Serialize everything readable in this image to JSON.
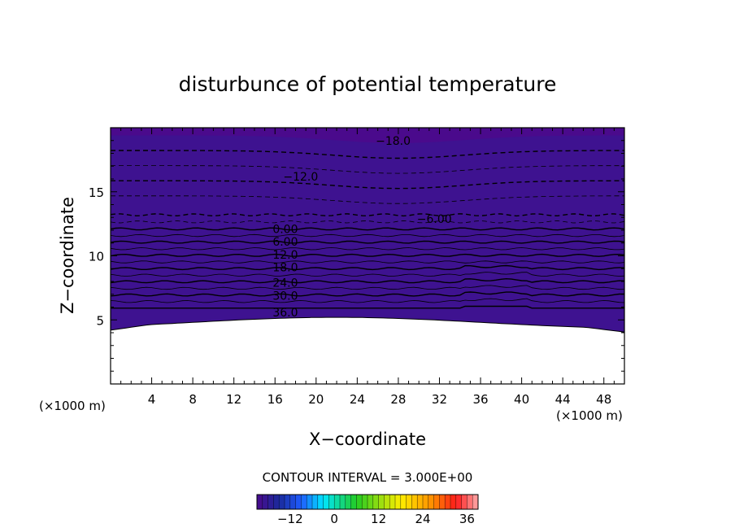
{
  "chart_data": {
    "type": "heatmap",
    "title": "disturbunce of potential temperature",
    "xlabel": "X−coordinate",
    "ylabel": "Z−coordinate",
    "x_unit": "(×1000 m)",
    "y_unit": "(×1000 m)",
    "xlim": [
      0,
      50
    ],
    "ylim": [
      0,
      20
    ],
    "x_ticks": [
      4,
      8,
      12,
      16,
      20,
      24,
      28,
      32,
      36,
      40,
      44,
      48
    ],
    "y_ticks": [
      5,
      10,
      15
    ],
    "contour_interval": 3.0,
    "footnote": "CONTOUR INTERVAL = 3.000E+00",
    "field_value_range": [
      -21,
      39
    ],
    "contour_labels": [
      {
        "text": "−18.0",
        "x": 27.5,
        "z": 19.0
      },
      {
        "text": "−12.0",
        "x": 18.5,
        "z": 16.2
      },
      {
        "text": "−6.00",
        "x": 31.5,
        "z": 12.9
      },
      {
        "text": "0.00",
        "x": 17.0,
        "z": 12.1
      },
      {
        "text": "6.00",
        "x": 17.0,
        "z": 11.1
      },
      {
        "text": "12.0",
        "x": 17.0,
        "z": 10.1
      },
      {
        "text": "18.0",
        "x": 17.0,
        "z": 9.1
      },
      {
        "text": "24.0",
        "x": 17.0,
        "z": 7.9
      },
      {
        "text": "30.0",
        "x": 17.0,
        "z": 6.9
      },
      {
        "text": "36.0",
        "x": 17.0,
        "z": 5.6
      }
    ],
    "colorbar": {
      "ticks": [
        -12,
        0,
        12,
        24,
        36
      ],
      "tick_labels": [
        "−12",
        "0",
        "12",
        "24",
        "36"
      ],
      "range": [
        -21,
        39
      ]
    },
    "colors": {
      "purple": "#4a0a8c",
      "blue": "#1f5cff",
      "cyan": "#00e5ff",
      "green": "#22cc22",
      "yellow": "#ffee00",
      "orange": "#ff8800",
      "red": "#ff1a1a",
      "pink": "#ffaaaa"
    }
  }
}
